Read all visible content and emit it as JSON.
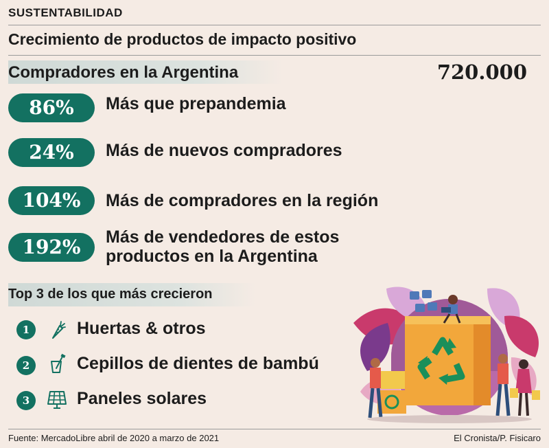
{
  "section_tag": "SUSTENTABILIDAD",
  "headline": "Crecimiento de productos de impacto positivo",
  "buyers": {
    "label": "Compradores en la Argentina",
    "count": "720.000"
  },
  "stats": [
    {
      "value": "86%",
      "text": "Más que prepandemia"
    },
    {
      "value": "24%",
      "text": "Más de nuevos compradores"
    },
    {
      "value": "104%",
      "text": "Más de compradores en la región"
    },
    {
      "value": "192%",
      "text_line1": "Más de vendedores de estos",
      "text_line2": "productos en la Argentina"
    }
  ],
  "top3": {
    "title": "Top 3 de los que más crecieron",
    "items": [
      {
        "rank": "1",
        "label": "Huertas & otros",
        "icon": "carrot-icon"
      },
      {
        "rank": "2",
        "label": "Cepillos de dientes de bambú",
        "icon": "toothbrush-cup-icon"
      },
      {
        "rank": "3",
        "label": "Paneles solares",
        "icon": "solar-panel-icon"
      }
    ]
  },
  "footer": {
    "source": "Fuente: MercadoLibre abril de 2020 a marzo de 2021",
    "credit": "El Cronista/P. Fisicaro"
  },
  "colors": {
    "accent_green": "#137161",
    "background": "#f5ebe4",
    "band": "#cfd9d6"
  }
}
